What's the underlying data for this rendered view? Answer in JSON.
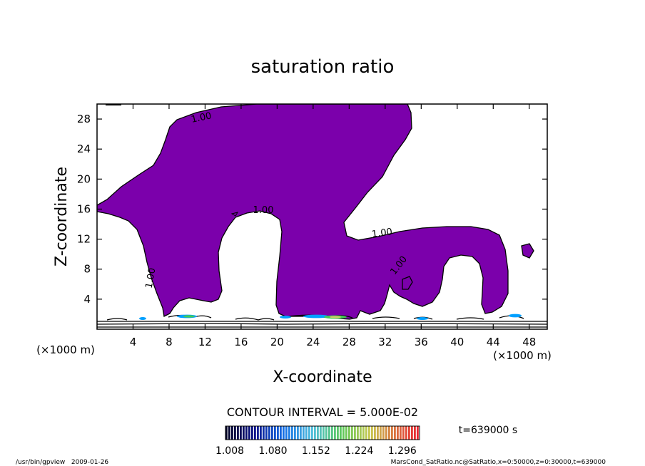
{
  "chart_data": {
    "type": "contour",
    "title": "saturation ratio",
    "xlabel": "X-coordinate",
    "ylabel": "Z-coordinate",
    "x_unit": "(×1000 m)",
    "z_unit": "(×1000 m)",
    "xlim": [
      0,
      50
    ],
    "ylim": [
      0,
      30
    ],
    "x_ticks": [
      4,
      8,
      12,
      16,
      20,
      24,
      28,
      32,
      36,
      40,
      44,
      48
    ],
    "y_ticks": [
      4,
      8,
      12,
      16,
      20,
      24,
      28
    ],
    "contour_interval_text": "CONTOUR INTERVAL = 5.000E-02",
    "contour_labels": [
      "1.00",
      "1.00",
      "1.00",
      "1.00",
      "1.00"
    ],
    "colorbar_ticks": [
      "1.008",
      "1.080",
      "1.152",
      "1.224",
      "1.296"
    ],
    "colorbar_range": [
      1.008,
      1.332
    ],
    "fill_color": "#7b00ab",
    "time_text": "t=639000 s",
    "grid": false
  },
  "footer": {
    "left": "/usr/bin/gpview   2009-01-26",
    "right": "MarsCond_SatRatio.nc@SatRatio,x=0:50000,z=0:30000,t=639000"
  }
}
